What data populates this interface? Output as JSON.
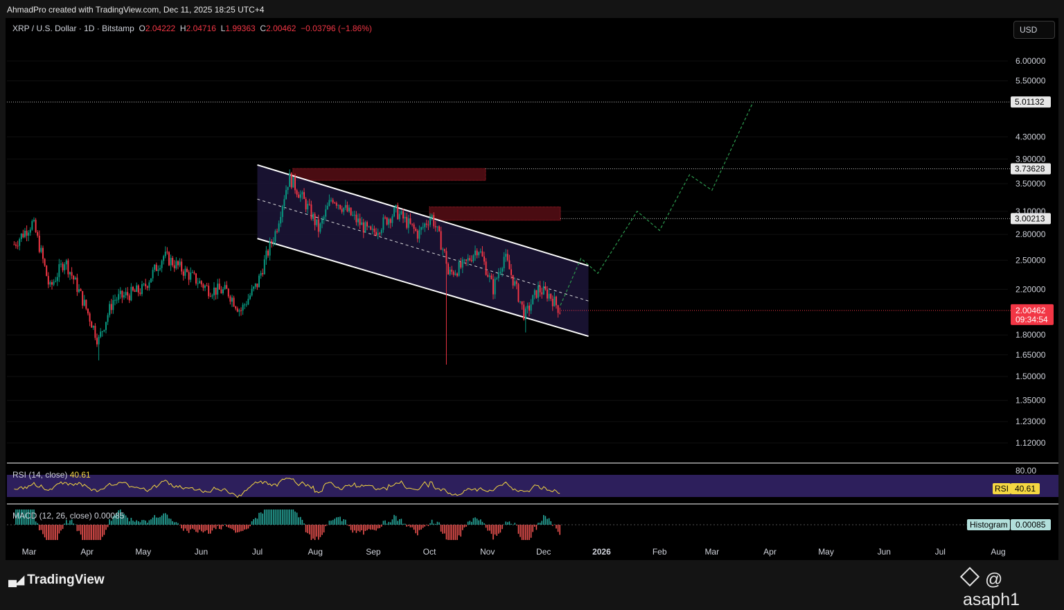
{
  "header": {
    "attribution": "AhmadPro created with TradingView.com, Dec 11, 2025 18:25 UTC+4"
  },
  "legend": {
    "symbol": "XRP / U.S. Dollar · 1D · Bitstamp",
    "o_label": "O",
    "o_value": "2.04222",
    "h_label": "H",
    "h_value": "2.04716",
    "l_label": "L",
    "l_value": "1.99363",
    "c_label": "C",
    "c_value": "2.00462",
    "change": "−0.03796 (−1.86%)"
  },
  "currency_button": "USD",
  "price_scale": {
    "ticks": [
      {
        "label": "6.00000",
        "value": 6.0
      },
      {
        "label": "5.50000",
        "value": 5.5
      },
      {
        "label": "4.30000",
        "value": 4.3
      },
      {
        "label": "3.90000",
        "value": 3.9
      },
      {
        "label": "3.50000",
        "value": 3.5
      },
      {
        "label": "3.10000",
        "value": 3.1
      },
      {
        "label": "2.80000",
        "value": 2.8
      },
      {
        "label": "2.50000",
        "value": 2.5
      },
      {
        "label": "2.20000",
        "value": 2.2
      },
      {
        "label": "1.80000",
        "value": 1.8
      },
      {
        "label": "1.65000",
        "value": 1.65
      },
      {
        "label": "1.50000",
        "value": 1.5
      },
      {
        "label": "1.35000",
        "value": 1.35
      },
      {
        "label": "1.23000",
        "value": 1.23
      },
      {
        "label": "1.12000",
        "value": 1.12
      }
    ],
    "levels": [
      {
        "label": "5.01132",
        "value": 5.01132
      },
      {
        "label": "3.73628",
        "value": 3.73628
      },
      {
        "label": "3.00213",
        "value": 3.00213
      }
    ],
    "current_price": "2.00462",
    "countdown": "09:34:54"
  },
  "time_axis": [
    {
      "label": "Mar",
      "bold": false
    },
    {
      "label": "Apr",
      "bold": false
    },
    {
      "label": "May",
      "bold": false
    },
    {
      "label": "Jun",
      "bold": false
    },
    {
      "label": "Jul",
      "bold": false
    },
    {
      "label": "Aug",
      "bold": false
    },
    {
      "label": "Sep",
      "bold": false
    },
    {
      "label": "Oct",
      "bold": false
    },
    {
      "label": "Nov",
      "bold": false
    },
    {
      "label": "Dec",
      "bold": false
    },
    {
      "label": "2026",
      "bold": true
    },
    {
      "label": "Feb",
      "bold": false
    },
    {
      "label": "Mar",
      "bold": false
    },
    {
      "label": "Apr",
      "bold": false
    },
    {
      "label": "May",
      "bold": false
    },
    {
      "label": "Jun",
      "bold": false
    },
    {
      "label": "Jul",
      "bold": false
    },
    {
      "label": "Aug",
      "bold": false
    }
  ],
  "rsi": {
    "label": "RSI (14, close)",
    "value": "40.61",
    "upper_label": "80.00",
    "badge": "RSI",
    "badge_value": "40.61"
  },
  "macd": {
    "label": "MACD (12, 26, close)",
    "value": "0.00085",
    "badge": "Histogram",
    "badge_value": "0.00085"
  },
  "footer": {
    "brand": "TradingView",
    "handle": "@ asaph1"
  },
  "colors": {
    "bull": "#089981",
    "bear": "#f23645",
    "channel_fill": "#1c1538",
    "rsi_band": "#2d1f5c",
    "rsi_line": "#f5d742",
    "projection": "#1f7a3a"
  },
  "chart_data": {
    "type": "candlestick",
    "symbol": "XRP / U.S. Dollar",
    "interval": "1D",
    "exchange": "Bitstamp",
    "scale": "log",
    "last": {
      "open": 2.04222,
      "high": 2.04716,
      "low": 1.99363,
      "close": 2.00462,
      "change": -0.03796,
      "change_pct": -1.86
    },
    "channel": {
      "upper": [
        {
          "date": "2025-07-01",
          "price": 3.8
        },
        {
          "date": "2025-12-25",
          "price": 2.44
        }
      ],
      "lower": [
        {
          "date": "2025-07-01",
          "price": 2.75
        },
        {
          "date": "2025-12-25",
          "price": 1.79
        }
      ],
      "mid": [
        {
          "date": "2025-07-01",
          "price": 3.27
        },
        {
          "date": "2025-12-25",
          "price": 2.09
        }
      ]
    },
    "resistance_zones": [
      {
        "from": "2025-07-20",
        "to": "2025-10-31",
        "low": 3.55,
        "high": 3.74
      },
      {
        "from": "2025-10-01",
        "to": "2025-12-10",
        "low": 2.98,
        "high": 3.16
      }
    ],
    "horizontal_levels": [
      5.01132,
      3.73628,
      3.00213
    ],
    "projection": [
      {
        "date": "2025-12-10",
        "price": 2.05
      },
      {
        "date": "2025-12-21",
        "price": 2.52
      },
      {
        "date": "2025-12-30",
        "price": 2.36
      },
      {
        "date": "2026-01-20",
        "price": 3.1
      },
      {
        "date": "2026-02-01",
        "price": 2.85
      },
      {
        "date": "2026-02-17",
        "price": 3.64
      },
      {
        "date": "2026-03-01",
        "price": 3.4
      },
      {
        "date": "2026-03-23",
        "price": 5.01
      }
    ],
    "monthly_path": [
      {
        "date": "2025-02-21",
        "price": 2.68
      },
      {
        "date": "2025-03-03",
        "price": 2.95
      },
      {
        "date": "2025-03-12",
        "price": 2.2
      },
      {
        "date": "2025-03-20",
        "price": 2.5
      },
      {
        "date": "2025-04-07",
        "price": 1.75
      },
      {
        "date": "2025-04-15",
        "price": 2.1
      },
      {
        "date": "2025-05-01",
        "price": 2.2
      },
      {
        "date": "2025-05-12",
        "price": 2.55
      },
      {
        "date": "2025-05-25",
        "price": 2.35
      },
      {
        "date": "2025-06-05",
        "price": 2.2
      },
      {
        "date": "2025-06-15",
        "price": 2.18
      },
      {
        "date": "2025-06-22",
        "price": 2.0
      },
      {
        "date": "2025-07-01",
        "price": 2.25
      },
      {
        "date": "2025-07-11",
        "price": 2.85
      },
      {
        "date": "2025-07-18",
        "price": 3.6
      },
      {
        "date": "2025-07-28",
        "price": 3.15
      },
      {
        "date": "2025-08-03",
        "price": 2.85
      },
      {
        "date": "2025-08-10",
        "price": 3.3
      },
      {
        "date": "2025-08-22",
        "price": 3.0
      },
      {
        "date": "2025-08-31",
        "price": 2.8
      },
      {
        "date": "2025-09-13",
        "price": 3.1
      },
      {
        "date": "2025-09-25",
        "price": 2.8
      },
      {
        "date": "2025-10-02",
        "price": 3.05
      },
      {
        "date": "2025-10-10",
        "price": 2.5
      },
      {
        "date": "2025-10-11",
        "price": 2.35
      },
      {
        "date": "2025-10-20",
        "price": 2.45
      },
      {
        "date": "2025-10-27",
        "price": 2.65
      },
      {
        "date": "2025-11-04",
        "price": 2.2
      },
      {
        "date": "2025-11-10",
        "price": 2.55
      },
      {
        "date": "2025-11-21",
        "price": 1.95
      },
      {
        "date": "2025-11-28",
        "price": 2.2
      },
      {
        "date": "2025-12-04",
        "price": 2.15
      },
      {
        "date": "2025-12-10",
        "price": 2.0
      }
    ],
    "wick_extremes": [
      {
        "date": "2025-04-07",
        "price": 1.61
      },
      {
        "date": "2025-10-10",
        "price": 1.58
      },
      {
        "date": "2025-11-21",
        "price": 1.82
      }
    ],
    "rsi": {
      "period": 14,
      "last": 40.61,
      "band": [
        30,
        70
      ],
      "upper_label": 80
    },
    "macd": {
      "fast": 12,
      "slow": 26,
      "histogram_last": 0.00085
    }
  }
}
